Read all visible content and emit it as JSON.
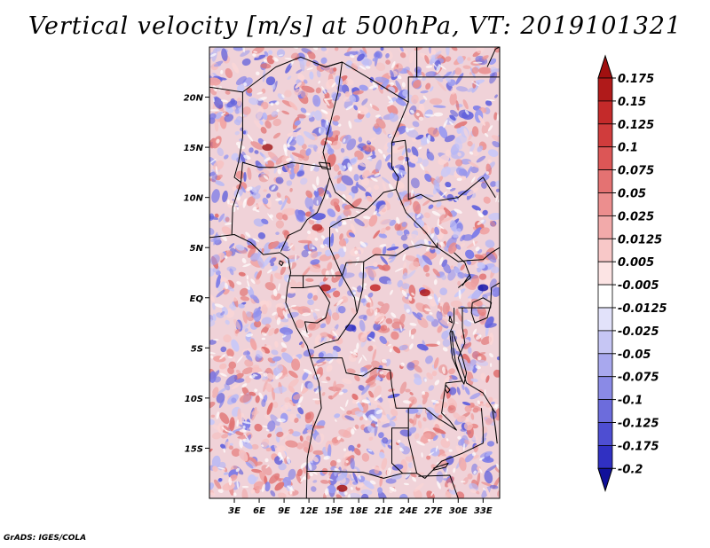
{
  "title": "Vertical velocity [m/s] at 500hPa, VT: 2019101321",
  "credit": "GrADS: IGES/COLA",
  "map": {
    "lon_range": [
      0,
      35
    ],
    "lat_range": [
      -20,
      25
    ],
    "lon_ticks": [
      {
        "value": 3,
        "label": "3E"
      },
      {
        "value": 6,
        "label": "6E"
      },
      {
        "value": 9,
        "label": "9E"
      },
      {
        "value": 12,
        "label": "12E"
      },
      {
        "value": 15,
        "label": "15E"
      },
      {
        "value": 18,
        "label": "18E"
      },
      {
        "value": 21,
        "label": "21E"
      },
      {
        "value": 24,
        "label": "24E"
      },
      {
        "value": 27,
        "label": "27E"
      },
      {
        "value": 30,
        "label": "30E"
      },
      {
        "value": 33,
        "label": "33E"
      }
    ],
    "lat_ticks": [
      {
        "value": 20,
        "label": "20N"
      },
      {
        "value": 15,
        "label": "15N"
      },
      {
        "value": 10,
        "label": "10N"
      },
      {
        "value": 5,
        "label": "5N"
      },
      {
        "value": 0,
        "label": "EQ"
      },
      {
        "value": -5,
        "label": "5S"
      },
      {
        "value": -10,
        "label": "10S"
      },
      {
        "value": -15,
        "label": "15S"
      }
    ]
  },
  "colorbar": {
    "levels": [
      {
        "label": "0.175",
        "color": "#b01a1a"
      },
      {
        "label": "0.15",
        "color": "#c42a2a"
      },
      {
        "label": "0.125",
        "color": "#d03c3c"
      },
      {
        "label": "0.1",
        "color": "#dc5656"
      },
      {
        "label": "0.075",
        "color": "#e47272"
      },
      {
        "label": "0.05",
        "color": "#ec8e8e"
      },
      {
        "label": "0.025",
        "color": "#f2aaaa"
      },
      {
        "label": "0.0125",
        "color": "#f8c8c8"
      },
      {
        "label": "0.005",
        "color": "#fce4e4"
      },
      {
        "label": "-0.005",
        "color": "#ffffff"
      },
      {
        "label": "-0.0125",
        "color": "#e2e2fa"
      },
      {
        "label": "-0.025",
        "color": "#c6c6f4"
      },
      {
        "label": "-0.05",
        "color": "#a8a8ee"
      },
      {
        "label": "-0.075",
        "color": "#8a8ae6"
      },
      {
        "label": "-0.1",
        "color": "#6c6cdc"
      },
      {
        "label": "-0.125",
        "color": "#4e4ed2"
      },
      {
        "label": "-0.175",
        "color": "#3030c2"
      },
      {
        "label": "-0.2",
        "color": "#1818a8"
      }
    ],
    "top_arrow_color": "#a01010",
    "bottom_arrow_color": "#10109a"
  },
  "background_color": "#f0d2d8"
}
